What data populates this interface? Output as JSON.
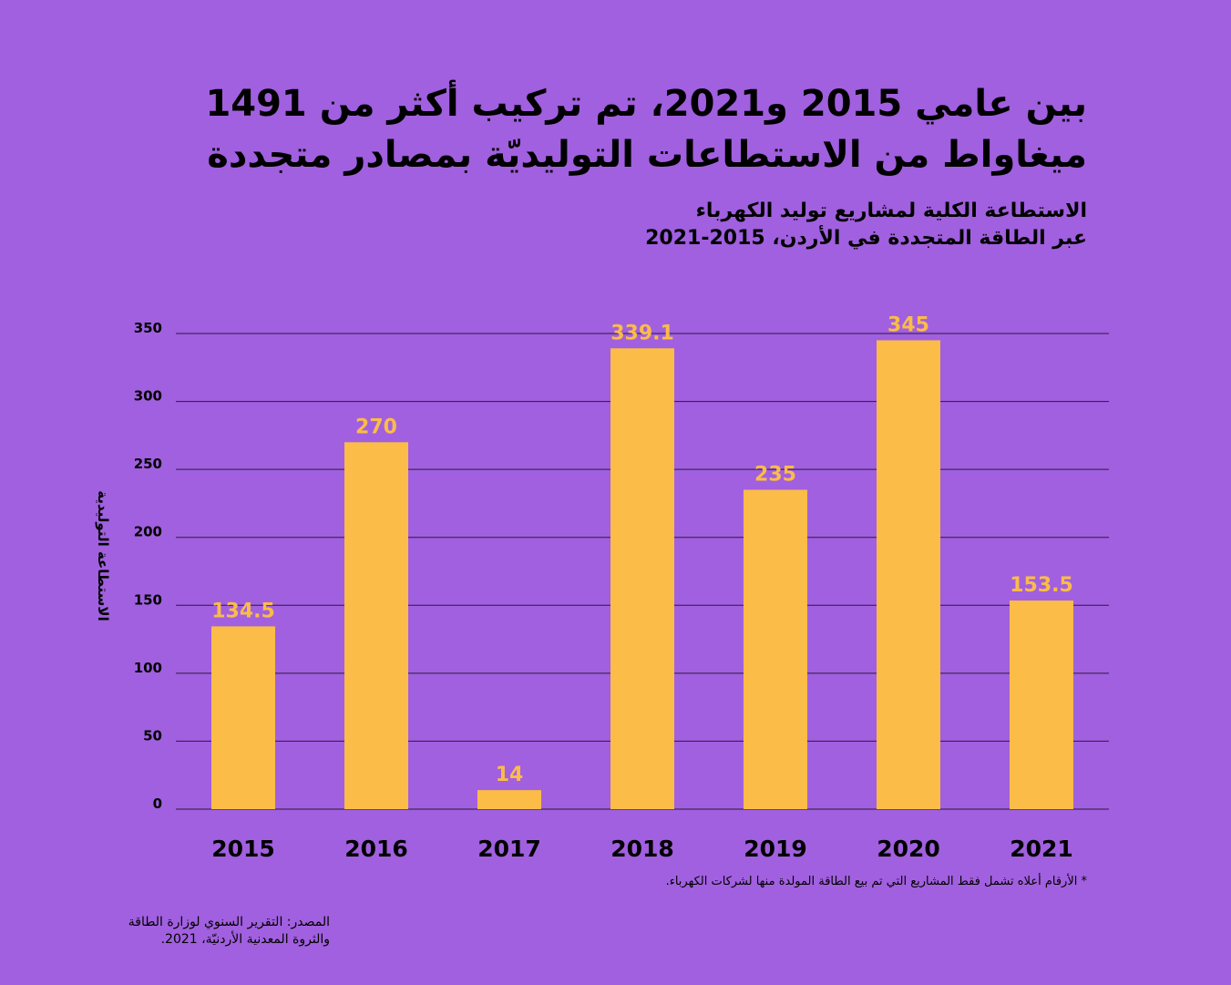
{
  "headline": {
    "line1": "بين عامي 2015 و2021، تم تركيب أكثر من 1491",
    "line2": "ميغاواط من الاستطاعات التوليديّة بمصادر متجددة"
  },
  "subtitle": {
    "line1": "الاستطاعة الكلية لمشاريع توليد الكهرباء",
    "line2": "عبر الطاقة المتجددة في الأردن، 2015-2021"
  },
  "footnote": "* الأرقام أعلاه تشمل فقط المشاريع التي تم بيع الطاقة المولدة منها لشركات الكهرباء.",
  "source": {
    "line1": "المصدر: التقرير السنوي لوزارة الطاقة",
    "line2": "والثروة المعدنية الأردنيّة، 2021."
  },
  "colors": {
    "background": "#a160df",
    "bar": "#fbbc48",
    "value_label": "#fbbc48",
    "text": "#000000",
    "gridline": "#2b1a3a"
  },
  "chart_data": {
    "type": "bar",
    "categories": [
      "2015",
      "2016",
      "2017",
      "2018",
      "2019",
      "2020",
      "2021"
    ],
    "values": [
      134.5,
      270,
      14,
      339.1,
      235,
      345,
      153.5
    ],
    "value_labels": [
      "134.5",
      "270",
      "14",
      "339.1",
      "235",
      "345",
      "153.5"
    ],
    "ylabel": "الاستطاعة التوليدية",
    "xlabel": "",
    "ylim": [
      0,
      350
    ],
    "yticks": [
      0,
      50,
      100,
      150,
      200,
      250,
      300,
      350
    ],
    "grid": true
  }
}
